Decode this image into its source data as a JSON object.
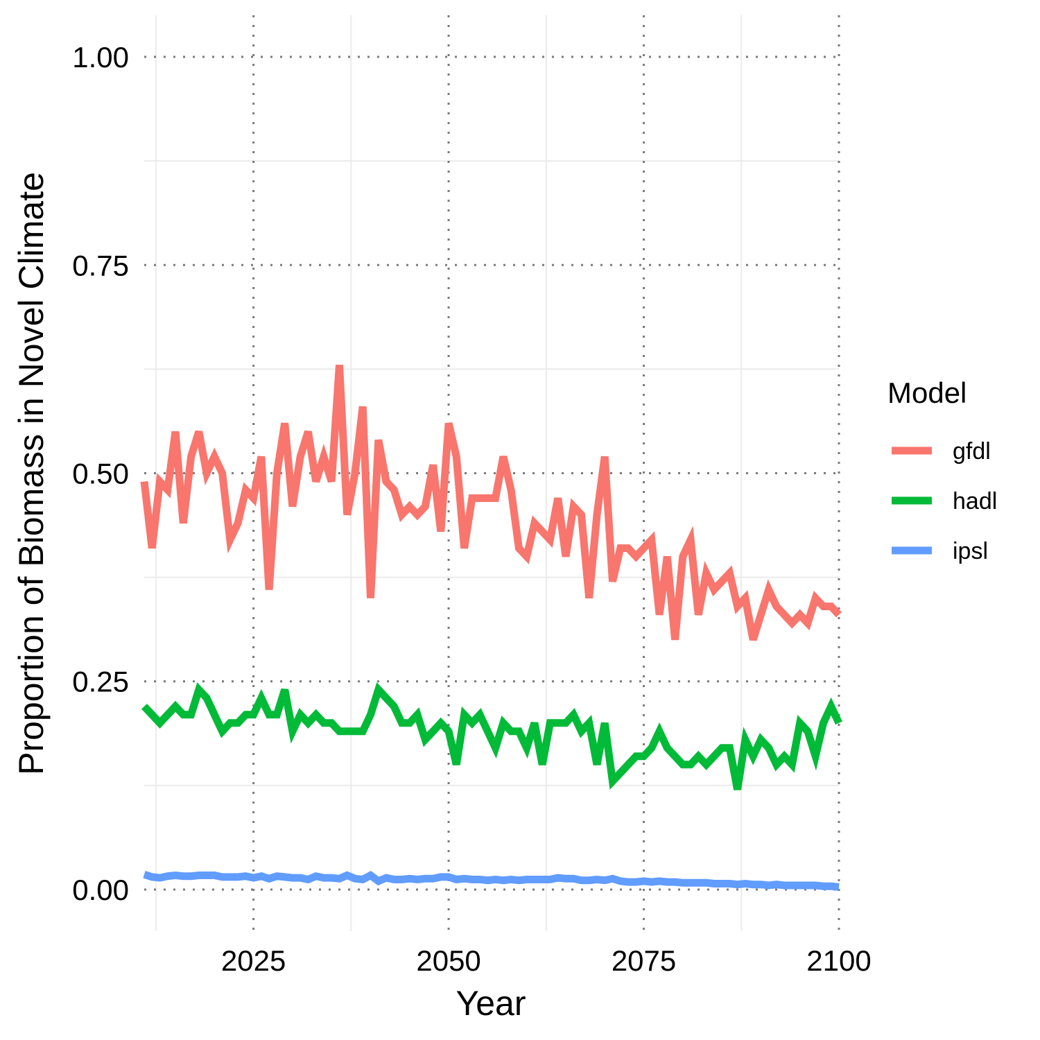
{
  "chart_data": {
    "type": "line",
    "xlabel": "Year",
    "ylabel": "Proportion of Biomass in Novel Climate",
    "xlim": [
      2011,
      2100
    ],
    "ylim": [
      -0.05,
      1.05
    ],
    "x_ticks": [
      2025,
      2050,
      2075,
      2100
    ],
    "x_tick_labels": [
      "2025",
      "2050",
      "2075",
      "2100"
    ],
    "y_ticks": [
      0,
      0.25,
      0.5,
      0.75,
      1
    ],
    "y_tick_labels": [
      "0.00",
      "0.25",
      "0.50",
      "0.75",
      "1.00"
    ],
    "grid": true,
    "legend": {
      "title": "Model",
      "position": "right"
    },
    "colors": {
      "gfdl": "#F8766D",
      "hadl": "#00BA38",
      "ipsl": "#619CFF"
    },
    "x": [
      2011,
      2012,
      2013,
      2014,
      2015,
      2016,
      2017,
      2018,
      2019,
      2020,
      2021,
      2022,
      2023,
      2024,
      2025,
      2026,
      2027,
      2028,
      2029,
      2030,
      2031,
      2032,
      2033,
      2034,
      2035,
      2036,
      2037,
      2038,
      2039,
      2040,
      2041,
      2042,
      2043,
      2044,
      2045,
      2046,
      2047,
      2048,
      2049,
      2050,
      2051,
      2052,
      2053,
      2054,
      2055,
      2056,
      2057,
      2058,
      2059,
      2060,
      2061,
      2062,
      2063,
      2064,
      2065,
      2066,
      2067,
      2068,
      2069,
      2070,
      2071,
      2072,
      2073,
      2074,
      2075,
      2076,
      2077,
      2078,
      2079,
      2080,
      2081,
      2082,
      2083,
      2084,
      2085,
      2086,
      2087,
      2088,
      2089,
      2090,
      2091,
      2092,
      2093,
      2094,
      2095,
      2096,
      2097,
      2098,
      2099,
      2100
    ],
    "series": [
      {
        "name": "gfdl",
        "values": [
          0.49,
          0.41,
          0.49,
          0.48,
          0.55,
          0.44,
          0.52,
          0.55,
          0.5,
          0.52,
          0.5,
          0.42,
          0.44,
          0.48,
          0.47,
          0.52,
          0.36,
          0.5,
          0.56,
          0.46,
          0.52,
          0.55,
          0.49,
          0.52,
          0.49,
          0.63,
          0.45,
          0.5,
          0.58,
          0.35,
          0.54,
          0.49,
          0.48,
          0.45,
          0.46,
          0.45,
          0.46,
          0.51,
          0.43,
          0.56,
          0.52,
          0.41,
          0.47,
          0.47,
          0.47,
          0.47,
          0.52,
          0.48,
          0.41,
          0.4,
          0.44,
          0.43,
          0.42,
          0.47,
          0.4,
          0.46,
          0.45,
          0.35,
          0.45,
          0.52,
          0.37,
          0.41,
          0.41,
          0.4,
          0.41,
          0.42,
          0.33,
          0.4,
          0.3,
          0.4,
          0.42,
          0.33,
          0.38,
          0.36,
          0.37,
          0.38,
          0.34,
          0.35,
          0.3,
          0.33,
          0.36,
          0.34,
          0.33,
          0.32,
          0.33,
          0.32,
          0.35,
          0.34,
          0.34,
          0.33
        ]
      },
      {
        "name": "hadl",
        "values": [
          0.22,
          0.21,
          0.2,
          0.21,
          0.22,
          0.21,
          0.21,
          0.24,
          0.23,
          0.21,
          0.19,
          0.2,
          0.2,
          0.21,
          0.21,
          0.23,
          0.21,
          0.21,
          0.24,
          0.19,
          0.21,
          0.2,
          0.21,
          0.2,
          0.2,
          0.19,
          0.19,
          0.19,
          0.19,
          0.21,
          0.24,
          0.23,
          0.22,
          0.2,
          0.2,
          0.21,
          0.18,
          0.19,
          0.2,
          0.19,
          0.15,
          0.21,
          0.2,
          0.21,
          0.19,
          0.17,
          0.2,
          0.19,
          0.19,
          0.17,
          0.2,
          0.15,
          0.2,
          0.2,
          0.2,
          0.21,
          0.19,
          0.2,
          0.15,
          0.2,
          0.13,
          0.14,
          0.15,
          0.16,
          0.16,
          0.17,
          0.19,
          0.17,
          0.16,
          0.15,
          0.15,
          0.16,
          0.15,
          0.16,
          0.17,
          0.17,
          0.12,
          0.18,
          0.16,
          0.18,
          0.17,
          0.15,
          0.16,
          0.15,
          0.2,
          0.19,
          0.16,
          0.2,
          0.22,
          0.2
        ]
      },
      {
        "name": "ipsl",
        "values": [
          0.018,
          0.015,
          0.014,
          0.016,
          0.017,
          0.016,
          0.016,
          0.017,
          0.017,
          0.017,
          0.015,
          0.015,
          0.015,
          0.016,
          0.014,
          0.016,
          0.013,
          0.016,
          0.015,
          0.014,
          0.014,
          0.012,
          0.016,
          0.014,
          0.014,
          0.013,
          0.017,
          0.013,
          0.012,
          0.017,
          0.01,
          0.014,
          0.012,
          0.012,
          0.013,
          0.012,
          0.013,
          0.013,
          0.015,
          0.015,
          0.012,
          0.013,
          0.012,
          0.012,
          0.011,
          0.012,
          0.011,
          0.012,
          0.011,
          0.012,
          0.012,
          0.012,
          0.012,
          0.014,
          0.013,
          0.013,
          0.011,
          0.011,
          0.012,
          0.011,
          0.013,
          0.01,
          0.009,
          0.009,
          0.01,
          0.009,
          0.01,
          0.009,
          0.009,
          0.008,
          0.008,
          0.008,
          0.008,
          0.007,
          0.007,
          0.007,
          0.006,
          0.007,
          0.006,
          0.006,
          0.005,
          0.006,
          0.005,
          0.005,
          0.005,
          0.005,
          0.005,
          0.004,
          0.004,
          0.003
        ]
      }
    ]
  }
}
